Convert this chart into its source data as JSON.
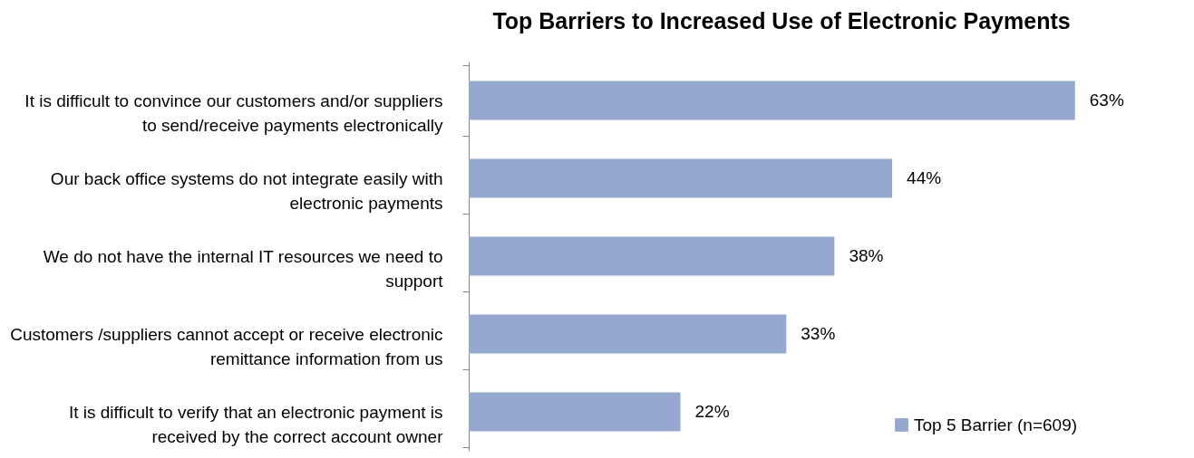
{
  "chart_data": {
    "type": "bar",
    "orientation": "horizontal",
    "title": "Top Barriers to Increased Use of Electronic Payments",
    "categories": [
      "It is difficult to convince our customers and/or suppliers to send/receive payments electronically",
      "Our back office systems do not integrate easily with electronic payments",
      "We do not have the internal IT resources we need to support",
      "Customers /suppliers cannot accept or receive electronic remittance information from us",
      "It is difficult to verify that an electronic payment is received by the correct account owner"
    ],
    "series": [
      {
        "name": "Top 5 Barrier (n=609)",
        "color": "#95a9d0",
        "values": [
          63,
          44,
          38,
          33,
          22
        ],
        "value_labels": [
          "63%",
          "44%",
          "38%",
          "33%",
          "22%"
        ]
      }
    ],
    "legend": "bottom right"
  }
}
